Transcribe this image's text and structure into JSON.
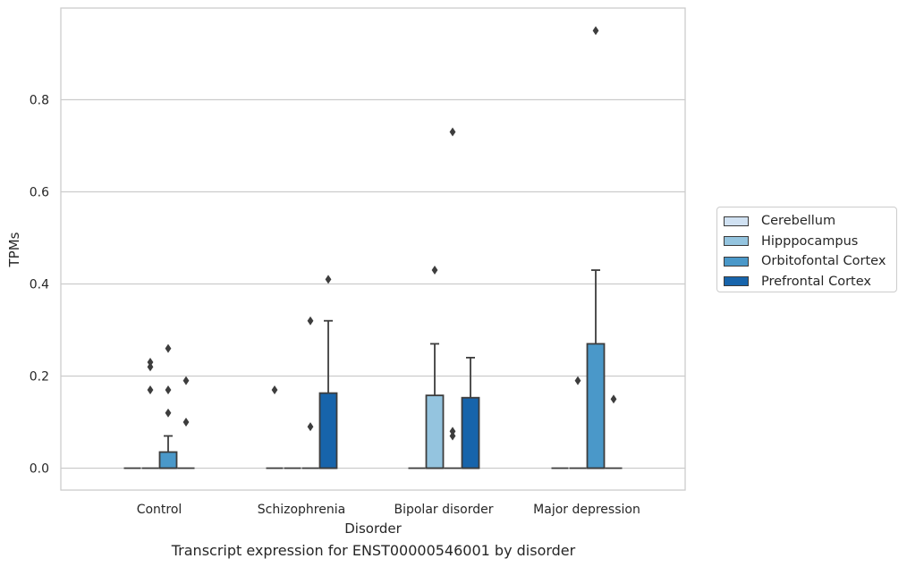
{
  "caption": "Transcript expression for ENST00000546001 by disorder",
  "chart_data": {
    "type": "boxplot",
    "title": "",
    "xlabel": "Disorder",
    "ylabel": "TPMs",
    "ylim": [
      -0.045,
      0.995
    ],
    "yticks": [
      0.0,
      0.2,
      0.4,
      0.6,
      0.8
    ],
    "ytick_labels": [
      "0.0",
      "0.2",
      "0.4",
      "0.6",
      "0.8"
    ],
    "grid": true,
    "legend_position": "right",
    "categories": [
      "Control",
      "Schizophrenia",
      "Bipolar disorder",
      "Major depression"
    ],
    "series": [
      {
        "name": "Cerebellum",
        "color": "#d0e1f2",
        "boxes": [
          {
            "q1": 0,
            "median": 0,
            "q3": 0,
            "whislo": 0,
            "whishi": 0,
            "fliers": []
          },
          {
            "q1": 0,
            "median": 0,
            "q3": 0,
            "whislo": 0,
            "whishi": 0,
            "fliers": [
              0.17
            ]
          },
          {
            "q1": 0,
            "median": 0,
            "q3": 0,
            "whislo": 0,
            "whishi": 0,
            "fliers": []
          },
          {
            "q1": 0,
            "median": 0,
            "q3": 0,
            "whislo": 0,
            "whishi": 0,
            "fliers": []
          }
        ]
      },
      {
        "name": "Hipppocampus",
        "color": "#94c4df",
        "boxes": [
          {
            "q1": 0,
            "median": 0,
            "q3": 0,
            "whislo": 0,
            "whishi": 0,
            "fliers": [
              0.17,
              0.23,
              0.22
            ]
          },
          {
            "q1": 0,
            "median": 0,
            "q3": 0,
            "whislo": 0,
            "whishi": 0,
            "fliers": []
          },
          {
            "q1": 0,
            "median": 0,
            "q3": 0.158,
            "whislo": 0,
            "whishi": 0.27,
            "fliers": [
              0.43
            ]
          },
          {
            "q1": 0,
            "median": 0,
            "q3": 0,
            "whislo": 0,
            "whishi": 0,
            "fliers": [
              0.19
            ]
          }
        ]
      },
      {
        "name": "Orbitofontal Cortex",
        "color": "#4a98c9",
        "boxes": [
          {
            "q1": 0,
            "median": 0,
            "q3": 0.035,
            "whislo": 0,
            "whishi": 0.07,
            "fliers": [
              0.26,
              0.17,
              0.12
            ]
          },
          {
            "q1": 0,
            "median": 0,
            "q3": 0,
            "whislo": 0,
            "whishi": 0,
            "fliers": [
              0.32,
              0.09
            ]
          },
          {
            "q1": 0,
            "median": 0,
            "q3": 0,
            "whislo": 0,
            "whishi": 0,
            "fliers": [
              0.73,
              0.08,
              0.07
            ]
          },
          {
            "q1": 0,
            "median": 0,
            "q3": 0.27,
            "whislo": 0,
            "whishi": 0.43,
            "fliers": [
              0.95
            ]
          }
        ]
      },
      {
        "name": "Prefrontal Cortex",
        "color": "#1764ab",
        "boxes": [
          {
            "q1": 0,
            "median": 0,
            "q3": 0,
            "whislo": 0,
            "whishi": 0,
            "fliers": [
              0.19,
              0.1
            ]
          },
          {
            "q1": 0,
            "median": 0,
            "q3": 0.163,
            "whislo": 0,
            "whishi": 0.32,
            "fliers": [
              0.41
            ]
          },
          {
            "q1": 0,
            "median": 0,
            "q3": 0.153,
            "whislo": 0,
            "whishi": 0.24,
            "fliers": []
          },
          {
            "q1": 0,
            "median": 0,
            "q3": 0,
            "whislo": 0,
            "whishi": 0,
            "fliers": [
              0.15
            ]
          }
        ]
      }
    ]
  }
}
